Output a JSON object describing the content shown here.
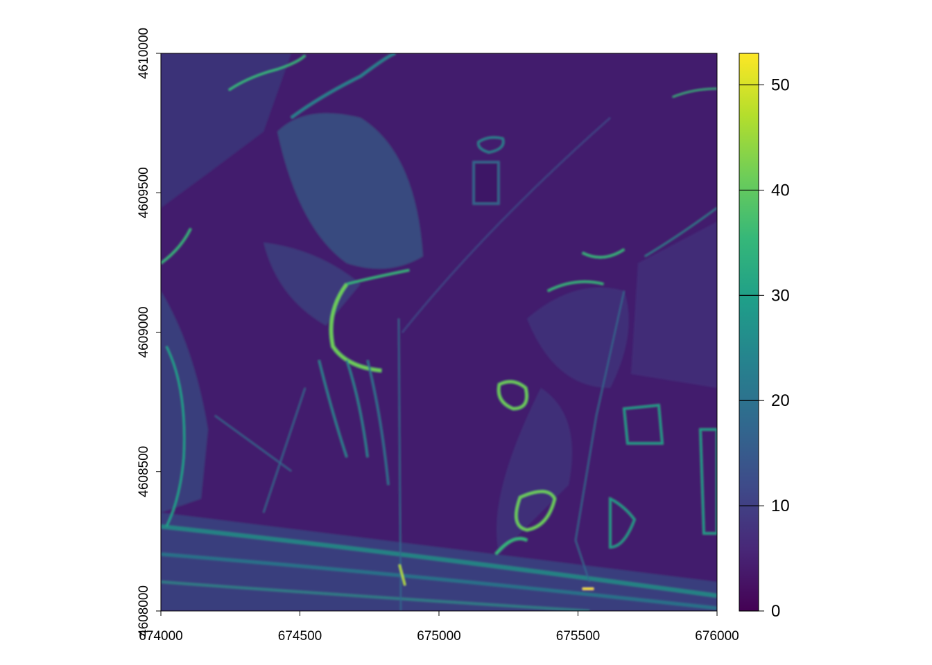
{
  "chart_data": {
    "type": "heatmap",
    "title": "",
    "xlabel": "",
    "ylabel": "",
    "xlim": [
      674000,
      676000
    ],
    "ylim": [
      4608000,
      4610000
    ],
    "x_ticks": [
      674000,
      674500,
      675000,
      675500,
      676000
    ],
    "y_ticks": [
      4608000,
      4608500,
      4609000,
      4609500,
      4610000
    ],
    "x_tick_labels": [
      "674000",
      "674500",
      "675000",
      "675500",
      "676000"
    ],
    "y_tick_labels": [
      "4608000",
      "4608500",
      "4609000",
      "4609500",
      "4610000"
    ],
    "colorbar": {
      "palette": "viridis",
      "range": [
        0,
        53
      ],
      "ticks": [
        0,
        10,
        20,
        30,
        40,
        50
      ],
      "tick_labels": [
        "0",
        "10",
        "20",
        "30",
        "40",
        "50"
      ],
      "colors": [
        "#440154",
        "#482878",
        "#3E4A89",
        "#31688E",
        "#26828E",
        "#1F9E89",
        "#35B779",
        "#6DCD59",
        "#B4DE2C",
        "#FDE725"
      ]
    },
    "grid": false,
    "legend_position": "right"
  }
}
